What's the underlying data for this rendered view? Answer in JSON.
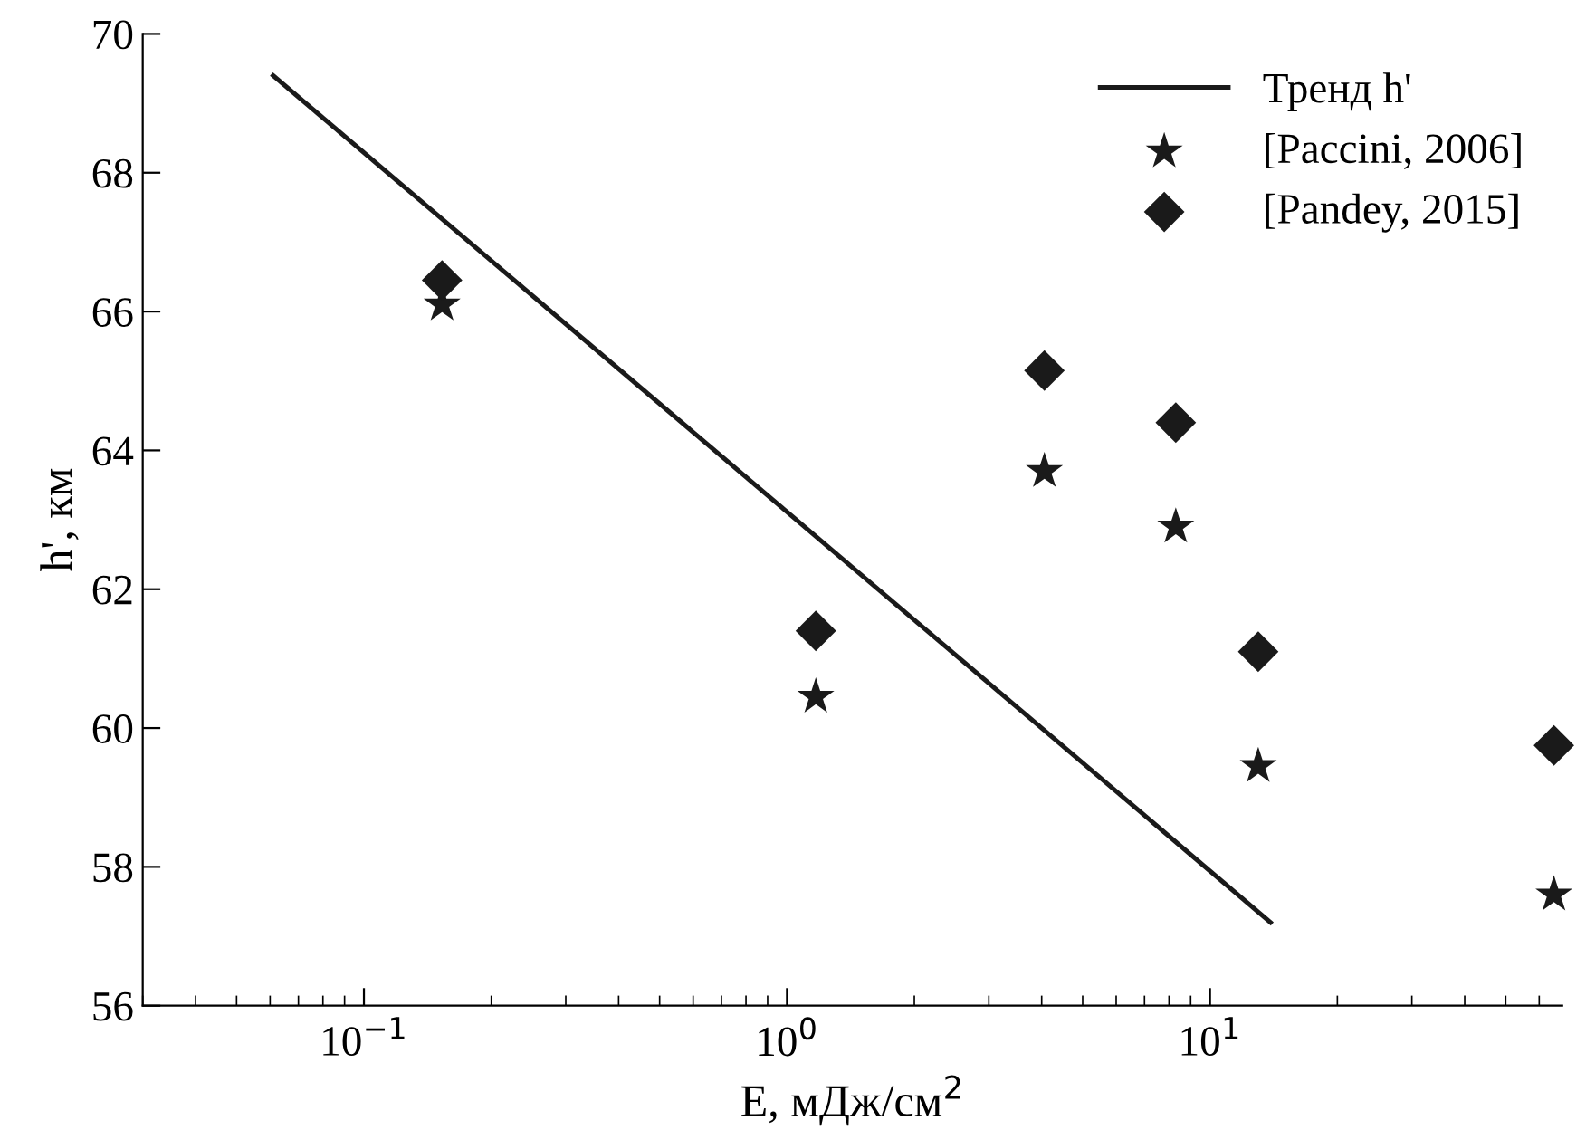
{
  "chart_data": {
    "type": "scatter",
    "xlabel": "E, мДж/см$^{2}$",
    "ylabel": "h', км",
    "log": "x",
    "xlim": [
      0.03,
      68
    ],
    "ylim": [
      56,
      70
    ],
    "xticks": [
      {
        "value": 0.1,
        "label": "10$^{−1}$"
      },
      {
        "value": 1,
        "label": "10$^{0}$"
      },
      {
        "value": 10,
        "label": "10$^{1}$"
      }
    ],
    "yticks": [
      56,
      58,
      60,
      62,
      64,
      66,
      68,
      70
    ],
    "grid": false,
    "legend": "top right",
    "series": [
      {
        "name": "Тренд h'",
        "type": "line",
        "color": "#1a1a1a",
        "marker": "none",
        "line_style": "solid",
        "x": [
          0.061,
          13.9
        ],
        "values": [
          69.4,
          57.2
        ]
      },
      {
        "name": "[Paccini, 2006]",
        "color": "#1a1a1a",
        "marker": "star",
        "x": [
          0.153,
          1.17,
          4.06,
          8.3,
          13.0,
          65
        ],
        "values": [
          66.1,
          60.45,
          63.7,
          62.9,
          59.45,
          57.6
        ]
      },
      {
        "name": "[Pandey, 2015]",
        "color": "#1a1a1a",
        "marker": "diamond",
        "x": [
          0.153,
          1.17,
          4.06,
          8.3,
          13.0,
          65
        ],
        "values": [
          66.45,
          61.4,
          65.15,
          64.4,
          61.1,
          59.75
        ]
      }
    ]
  }
}
